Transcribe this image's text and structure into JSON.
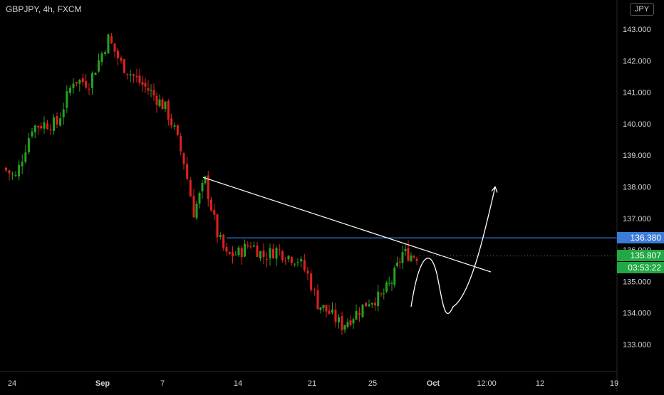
{
  "header": {
    "symbol_line": "GBPJPY, 4h, FXCM",
    "currency": "JPY"
  },
  "price_tags": {
    "horizontal_line": "136.380",
    "last_price": "135.807",
    "countdown": "03:53:22"
  },
  "colors": {
    "background": "#000000",
    "up_candle": "#26a11f",
    "down_candle": "#e0201f",
    "hline": "#3d7bd8",
    "trendline": "#ffffff",
    "axis_text": "#d1d4dc"
  },
  "chart_data": {
    "type": "candlestick",
    "title": "GBPJPY, 4h, FXCM",
    "y_ticks": [
      "143.000",
      "142.000",
      "141.000",
      "140.000",
      "139.000",
      "138.000",
      "137.000",
      "136.000",
      "135.000",
      "134.000",
      "133.000"
    ],
    "ylim": [
      132.5,
      143.9
    ],
    "x_ticks": [
      "24",
      "Sep",
      "7",
      "14",
      "21",
      "25",
      "Oct",
      "12:00",
      "12",
      "19"
    ],
    "grid": false,
    "anchors": [
      {
        "label": "Aug 24",
        "close": 138.6
      },
      {
        "label": "Aug 26",
        "close": 138.3
      },
      {
        "label": "Aug 27",
        "close": 139.9
      },
      {
        "label": "Aug 28",
        "close": 140.0
      },
      {
        "label": "Aug 30",
        "close": 140.0
      },
      {
        "label": "Aug 31",
        "close": 141.4
      },
      {
        "label": "Sep 1",
        "close": 141.3
      },
      {
        "label": "Sep 2",
        "close": 142.7
      },
      {
        "label": "Sep 3",
        "close": 141.9
      },
      {
        "label": "Sep 4",
        "close": 141.4
      },
      {
        "label": "Sep 6",
        "close": 141.0
      },
      {
        "label": "Sep 7",
        "close": 140.5
      },
      {
        "label": "Sep 8",
        "close": 139.8
      },
      {
        "label": "Sep 9",
        "close": 138.8
      },
      {
        "label": "Sep 10",
        "close": 137.2
      },
      {
        "label": "Sep 11",
        "close": 138.2
      },
      {
        "label": "Sep 12",
        "close": 136.5
      },
      {
        "label": "Sep 13",
        "close": 135.8
      },
      {
        "label": "Sep 14",
        "close": 135.9
      },
      {
        "label": "Sep 15",
        "close": 136.2
      },
      {
        "label": "Sep 16",
        "close": 135.8
      },
      {
        "label": "Sep 17",
        "close": 136.0
      },
      {
        "label": "Sep 18",
        "close": 135.8
      },
      {
        "label": "Sep 19",
        "close": 135.7
      },
      {
        "label": "Sep 20",
        "close": 135.2
      },
      {
        "label": "Sep 21",
        "close": 134.3
      },
      {
        "label": "Sep 22",
        "close": 134.0
      },
      {
        "label": "Sep 23",
        "close": 133.6
      },
      {
        "label": "Sep 24",
        "close": 134.0
      },
      {
        "label": "Sep 25",
        "close": 134.4
      },
      {
        "label": "Sep 26",
        "close": 134.5
      },
      {
        "label": "Sep 27",
        "close": 135.0
      },
      {
        "label": "Sep 28",
        "close": 135.9
      },
      {
        "label": "Sep 29",
        "close": 135.8
      }
    ],
    "horizontal_line": 136.38,
    "last_price": 135.807,
    "trendline": {
      "from": {
        "label": "Sep 11",
        "price": 138.3
      },
      "to": {
        "label": "Oct 4",
        "price": 135.3
      }
    },
    "projection_arrow": [
      134.2,
      135.6,
      134.2,
      138.0
    ]
  }
}
